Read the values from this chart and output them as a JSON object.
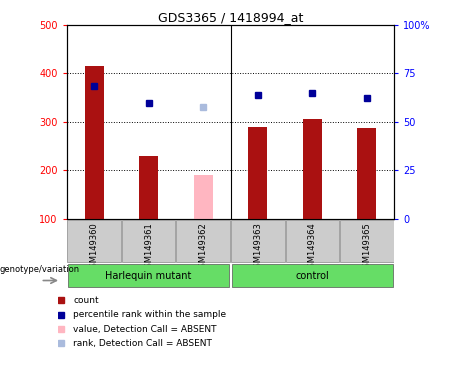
{
  "title": "GDS3365 / 1418994_at",
  "samples": [
    "GSM149360",
    "GSM149361",
    "GSM149362",
    "GSM149363",
    "GSM149364",
    "GSM149365"
  ],
  "counts": [
    415,
    230,
    190,
    290,
    307,
    287
  ],
  "percentile_ranks": [
    375,
    340,
    330,
    355,
    360,
    350
  ],
  "absent_flags": [
    false,
    false,
    true,
    false,
    false,
    false
  ],
  "ylim_left": [
    100,
    500
  ],
  "ylim_right": [
    0,
    100
  ],
  "yticks_left": [
    100,
    200,
    300,
    400,
    500
  ],
  "ytick_labels_left": [
    "100",
    "200",
    "300",
    "400",
    "500"
  ],
  "yticks_right": [
    0,
    25,
    50,
    75,
    100
  ],
  "ytick_labels_right": [
    "0",
    "25",
    "50",
    "75",
    "100%"
  ],
  "grid_lines": [
    200,
    300,
    400
  ],
  "bar_color_present": "#AA1111",
  "bar_color_absent": "#FFB6C1",
  "rank_color_present": "#000099",
  "rank_color_absent": "#AABBDD",
  "legend_items": [
    {
      "label": "count",
      "color": "#AA1111"
    },
    {
      "label": "percentile rank within the sample",
      "color": "#000099"
    },
    {
      "label": "value, Detection Call = ABSENT",
      "color": "#FFB6C1"
    },
    {
      "label": "rank, Detection Call = ABSENT",
      "color": "#AABBDD"
    }
  ],
  "group_label_left": "genotype/variation",
  "groups": [
    {
      "label": "Harlequin mutant",
      "start": 0,
      "end": 2
    },
    {
      "label": "control",
      "start": 3,
      "end": 5
    }
  ],
  "group_color": "#66DD66"
}
